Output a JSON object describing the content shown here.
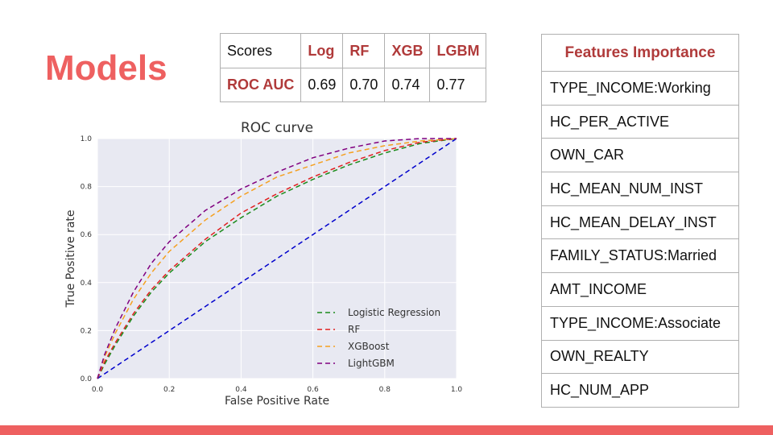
{
  "slide": {
    "title": "Models"
  },
  "scores_table": {
    "header": [
      "Scores",
      "Log",
      "RF",
      "XGB",
      "LGBM"
    ],
    "row_label": "ROC AUC",
    "row_values": [
      "0.69",
      "0.70",
      "0.74",
      "0.77"
    ]
  },
  "features_table": {
    "header": "Features Importance",
    "items": [
      "TYPE_INCOME:Working",
      "HC_PER_ACTIVE",
      "OWN_CAR",
      "HC_MEAN_NUM_INST",
      "HC_MEAN_DELAY_INST",
      "FAMILY_STATUS:Married",
      "AMT_INCOME",
      "TYPE_INCOME:Associate",
      "OWN_REALTY",
      "HC_NUM_APP"
    ]
  },
  "colors": {
    "accent": "#ee6060",
    "header_red": "#b03a3a",
    "plot_bg": "#e8e9f2"
  },
  "chart_data": {
    "type": "line",
    "title": "ROC curve",
    "xlabel": "False Positive Rate",
    "ylabel": "True Positive rate",
    "xlim": [
      0,
      1
    ],
    "ylim": [
      0,
      1
    ],
    "xticks": [
      "0.0",
      "0.2",
      "0.4",
      "0.6",
      "0.8",
      "1.0"
    ],
    "yticks": [
      "0.0",
      "0.2",
      "0.4",
      "0.6",
      "0.8",
      "1.0"
    ],
    "grid": true,
    "legend_position": "lower-right",
    "x": [
      0,
      0.02,
      0.05,
      0.1,
      0.15,
      0.2,
      0.3,
      0.4,
      0.5,
      0.6,
      0.7,
      0.8,
      0.9,
      1.0
    ],
    "series": [
      {
        "name": "Logistic Regression",
        "color": "#1a8a1a",
        "dash": true,
        "values": [
          0,
          0.06,
          0.14,
          0.26,
          0.36,
          0.44,
          0.57,
          0.67,
          0.76,
          0.83,
          0.89,
          0.94,
          0.98,
          1.0
        ]
      },
      {
        "name": "RF",
        "color": "#e02020",
        "dash": true,
        "values": [
          0,
          0.07,
          0.15,
          0.27,
          0.37,
          0.45,
          0.58,
          0.69,
          0.77,
          0.84,
          0.9,
          0.95,
          0.985,
          1.0
        ]
      },
      {
        "name": "XGBoost",
        "color": "#f5a020",
        "dash": true,
        "values": [
          0,
          0.09,
          0.19,
          0.33,
          0.44,
          0.53,
          0.66,
          0.76,
          0.84,
          0.89,
          0.94,
          0.97,
          0.99,
          1.0
        ]
      },
      {
        "name": "LightGBM",
        "color": "#800080",
        "dash": true,
        "values": [
          0,
          0.1,
          0.21,
          0.36,
          0.48,
          0.57,
          0.7,
          0.79,
          0.86,
          0.92,
          0.96,
          0.99,
          1.0,
          1.0
        ]
      },
      {
        "name": "",
        "color": "#0000cc",
        "dash": true,
        "values": [
          0,
          0.02,
          0.05,
          0.1,
          0.15,
          0.2,
          0.3,
          0.4,
          0.5,
          0.6,
          0.7,
          0.8,
          0.9,
          1.0
        ]
      }
    ]
  }
}
